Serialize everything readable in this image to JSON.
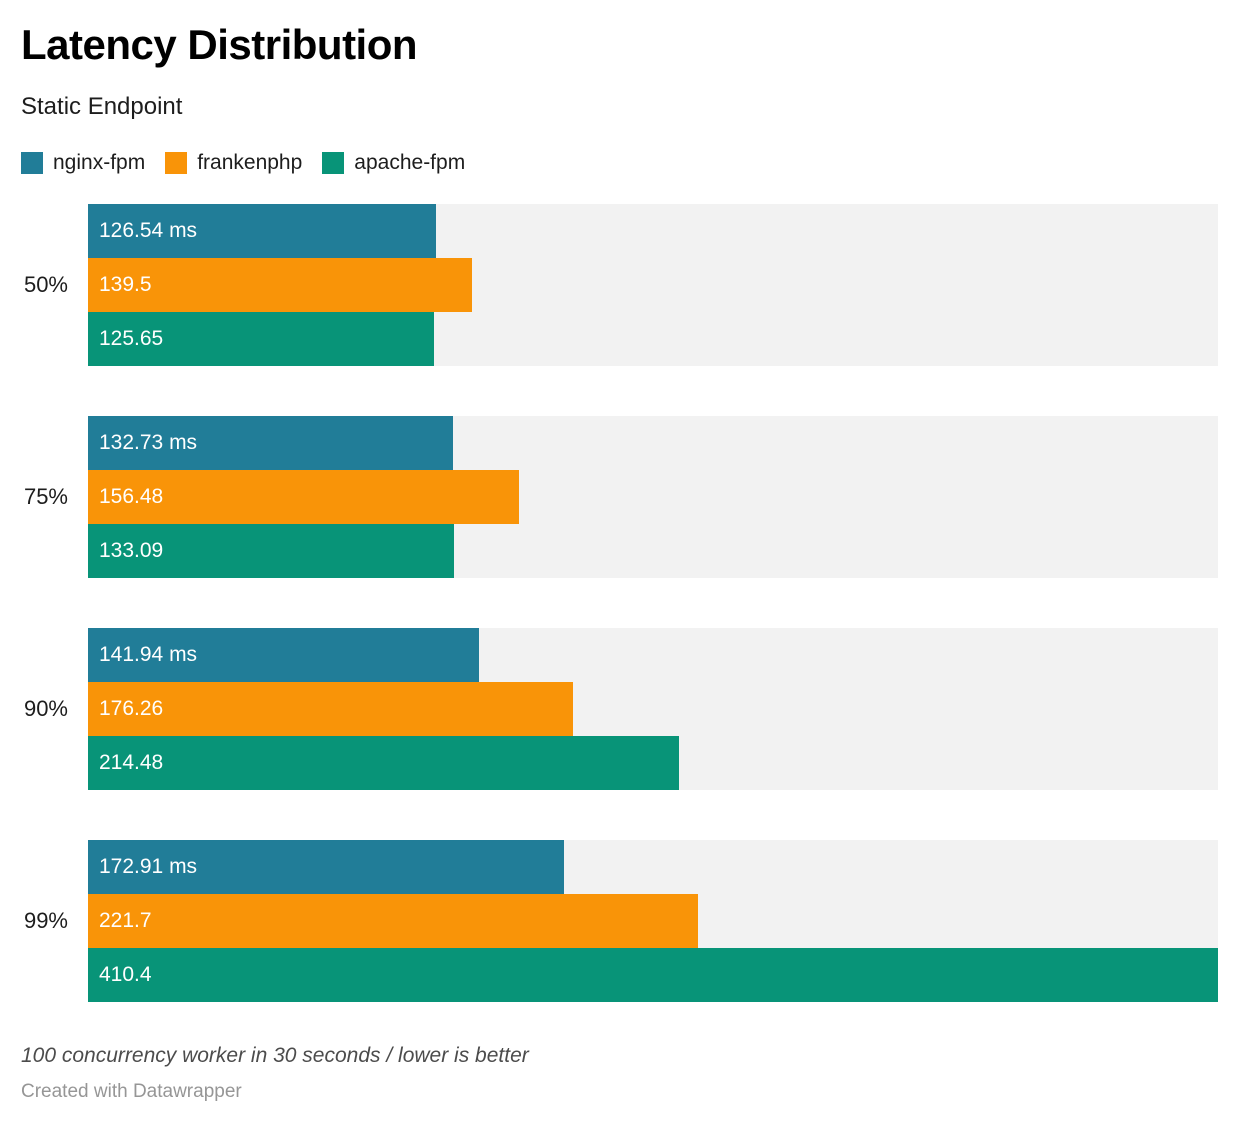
{
  "header": {
    "title": "Latency Distribution",
    "subtitle": "Static Endpoint"
  },
  "legend": [
    {
      "label": "nginx-fpm",
      "color": "#217d98"
    },
    {
      "label": "frankenphp",
      "color": "#f99408"
    },
    {
      "label": "apache-fpm",
      "color": "#089478"
    }
  ],
  "chart_data": {
    "type": "bar",
    "orientation": "horizontal",
    "title": "Latency Distribution",
    "subtitle": "Static Endpoint",
    "unit": "ms",
    "legend_position": "top",
    "grid": false,
    "xlim": [
      0,
      410.4
    ],
    "xmax": 410.4,
    "track_color": "#f2f2f2",
    "categories": [
      "50%",
      "75%",
      "90%",
      "99%"
    ],
    "series": [
      {
        "name": "nginx-fpm",
        "color": "#217d98",
        "values": [
          126.54,
          132.73,
          141.94,
          172.91
        ],
        "labels": [
          "126.54 ms",
          "132.73 ms",
          "141.94 ms",
          "172.91 ms"
        ]
      },
      {
        "name": "frankenphp",
        "color": "#f99408",
        "values": [
          139.5,
          156.48,
          176.26,
          221.7
        ],
        "labels": [
          "139.5",
          "156.48",
          "176.26",
          "221.7"
        ]
      },
      {
        "name": "apache-fpm",
        "color": "#089478",
        "values": [
          125.65,
          133.09,
          214.48,
          410.4
        ],
        "labels": [
          "125.65",
          "133.09",
          "214.48",
          "410.4"
        ]
      }
    ]
  },
  "footer": {
    "note": "100 concurrency worker in 30 seconds / lower is better",
    "byline": "Created with Datawrapper"
  }
}
